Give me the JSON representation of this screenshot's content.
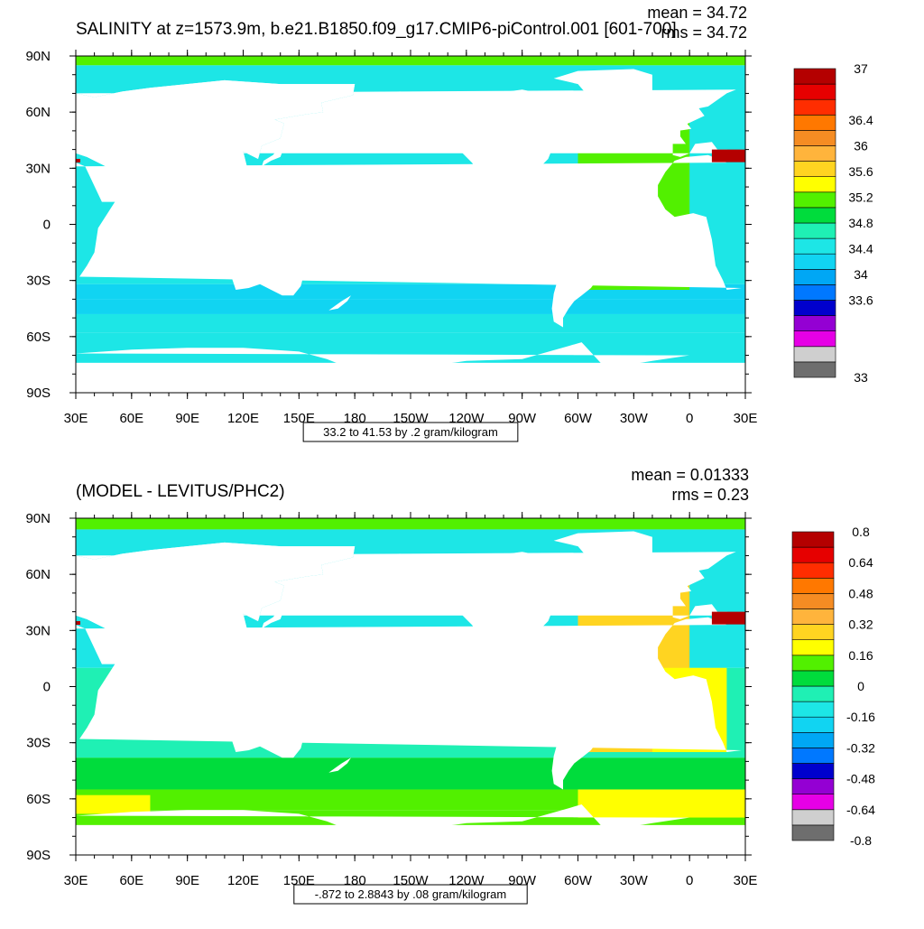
{
  "chart_data": [
    {
      "type": "heatmap",
      "title": "SALINITY at z=1573.9m, b.e21.B1850.f09_g17.CMIP6-piControl.001 [601-700]",
      "stats": [
        "mean = 34.72",
        "rms = 34.72"
      ],
      "x_ticks": [
        "30E",
        "60E",
        "90E",
        "120E",
        "150E",
        "180",
        "150W",
        "120W",
        "90W",
        "60W",
        "30W",
        "0",
        "30E"
      ],
      "y_ticks": [
        "90N",
        "60N",
        "30N",
        "0",
        "30S",
        "60S",
        "90S"
      ],
      "x_range": [
        30,
        390
      ],
      "y_range": [
        -90,
        90
      ],
      "contour_info": "33.2 to 41.53 by .2 gram/kilogram",
      "colorbar": {
        "colors": [
          "#6e6e6e",
          "#cfcfcf",
          "#e600e6",
          "#9400d3",
          "#0000cd",
          "#0078ff",
          "#00a7f5",
          "#11d4f2",
          "#1de6e6",
          "#1ff0b4",
          "#00dc3c",
          "#52f000",
          "#ffff00",
          "#ffd421",
          "#ffb43c",
          "#f58c23",
          "#ff7800",
          "#ff2d00",
          "#e60000",
          "#b40000"
        ],
        "labels": [
          {
            "t": "33",
            "i": 0
          },
          {
            "t": "33.6",
            "i": 6
          },
          {
            "t": "34",
            "i": 8
          },
          {
            "t": "34.4",
            "i": 10
          },
          {
            "t": "34.8",
            "i": 12
          },
          {
            "t": "35.2",
            "i": 14
          },
          {
            "t": "35.6",
            "i": 16
          },
          {
            "t": "36",
            "i": 18
          },
          {
            "t": "36.4",
            "i": 20
          },
          {
            "t": "37",
            "i": 24
          }
        ],
        "nbins": 10
      }
    },
    {
      "type": "heatmap",
      "title": "(MODEL - LEVITUS/PHC2)",
      "stats": [
        "mean = 0.01333",
        "rms = 0.23"
      ],
      "x_ticks": [
        "30E",
        "60E",
        "90E",
        "120E",
        "150E",
        "180",
        "150W",
        "120W",
        "90W",
        "60W",
        "30W",
        "0",
        "30E"
      ],
      "y_ticks": [
        "90N",
        "60N",
        "30N",
        "0",
        "30S",
        "60S",
        "90S"
      ],
      "x_range": [
        30,
        390
      ],
      "y_range": [
        -90,
        90
      ],
      "contour_info": "-.872 to 2.8843 by .08 gram/kilogram",
      "colorbar": {
        "colors": [
          "#6e6e6e",
          "#cfcfcf",
          "#e600e6",
          "#9400d3",
          "#0000cd",
          "#0078ff",
          "#00a7f5",
          "#11d4f2",
          "#1de6e6",
          "#1ff0b4",
          "#00dc3c",
          "#52f000",
          "#ffff00",
          "#ffd421",
          "#ffb43c",
          "#f58c23",
          "#ff7800",
          "#ff2d00",
          "#e60000",
          "#b40000"
        ],
        "labels": [
          {
            "t": "-0.8",
            "i": 0
          },
          {
            "t": "-0.64",
            "i": 1
          },
          {
            "t": "-0.48",
            "i": 2
          },
          {
            "t": "-0.32",
            "i": 3
          },
          {
            "t": "-0.16",
            "i": 4
          },
          {
            "t": "0",
            "i": 5
          },
          {
            "t": "0.16",
            "i": 6
          },
          {
            "t": "0.32",
            "i": 7
          },
          {
            "t": "0.48",
            "i": 8
          },
          {
            "t": "0.64",
            "i": 9
          },
          {
            "t": "0.8",
            "i": 10
          }
        ],
        "nbins": 10
      }
    }
  ]
}
